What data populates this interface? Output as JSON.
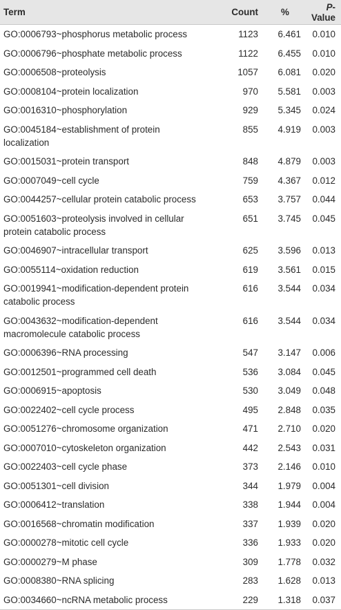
{
  "headers": {
    "term": "Term",
    "count": "Count",
    "pct": "%",
    "p_prefix": "P",
    "p_suffix": "-Value"
  },
  "rows": [
    {
      "term": "GO:0006793~phosphorus metabolic process",
      "count": "1123",
      "pct": "6.461",
      "p": "0.010"
    },
    {
      "term": "GO:0006796~phosphate metabolic process",
      "count": "1122",
      "pct": "6.455",
      "p": "0.010"
    },
    {
      "term": "GO:0006508~proteolysis",
      "count": "1057",
      "pct": "6.081",
      "p": "0.020"
    },
    {
      "term": "GO:0008104~protein localization",
      "count": "970",
      "pct": "5.581",
      "p": "0.003"
    },
    {
      "term": "GO:0016310~phosphorylation",
      "count": "929",
      "pct": "5.345",
      "p": "0.024"
    },
    {
      "term": "GO:0045184~establishment of protein localization",
      "count": "855",
      "pct": "4.919",
      "p": "0.003"
    },
    {
      "term": "GO:0015031~protein transport",
      "count": "848",
      "pct": "4.879",
      "p": "0.003"
    },
    {
      "term": "GO:0007049~cell cycle",
      "count": "759",
      "pct": "4.367",
      "p": "0.012"
    },
    {
      "term": "GO:0044257~cellular protein catabolic process",
      "count": "653",
      "pct": "3.757",
      "p": "0.044"
    },
    {
      "term": "GO:0051603~proteolysis involved in cellular protein catabolic process",
      "count": "651",
      "pct": "3.745",
      "p": "0.045"
    },
    {
      "term": "GO:0046907~intracellular transport",
      "count": "625",
      "pct": "3.596",
      "p": "0.013"
    },
    {
      "term": "GO:0055114~oxidation reduction",
      "count": "619",
      "pct": "3.561",
      "p": "0.015"
    },
    {
      "term": "GO:0019941~modification-dependent protein catabolic process",
      "count": "616",
      "pct": "3.544",
      "p": "0.034"
    },
    {
      "term": "GO:0043632~modification-dependent macromolecule catabolic process",
      "count": "616",
      "pct": "3.544",
      "p": "0.034"
    },
    {
      "term": "GO:0006396~RNA processing",
      "count": "547",
      "pct": "3.147",
      "p": "0.006"
    },
    {
      "term": "GO:0012501~programmed cell death",
      "count": "536",
      "pct": "3.084",
      "p": "0.045"
    },
    {
      "term": "GO:0006915~apoptosis",
      "count": "530",
      "pct": "3.049",
      "p": "0.048"
    },
    {
      "term": "GO:0022402~cell cycle process",
      "count": "495",
      "pct": "2.848",
      "p": "0.035"
    },
    {
      "term": "GO:0051276~chromosome organization",
      "count": "471",
      "pct": "2.710",
      "p": "0.020"
    },
    {
      "term": "GO:0007010~cytoskeleton organization",
      "count": "442",
      "pct": "2.543",
      "p": "0.031"
    },
    {
      "term": "GO:0022403~cell cycle phase",
      "count": "373",
      "pct": "2.146",
      "p": "0.010"
    },
    {
      "term": "GO:0051301~cell division",
      "count": "344",
      "pct": "1.979",
      "p": "0.004"
    },
    {
      "term": "GO:0006412~translation",
      "count": "338",
      "pct": "1.944",
      "p": "0.004"
    },
    {
      "term": "GO:0016568~chromatin modification",
      "count": "337",
      "pct": "1.939",
      "p": "0.020"
    },
    {
      "term": "GO:0000278~mitotic cell cycle",
      "count": "336",
      "pct": "1.933",
      "p": "0.020"
    },
    {
      "term": "GO:0000279~M phase",
      "count": "309",
      "pct": "1.778",
      "p": "0.032"
    },
    {
      "term": "GO:0008380~RNA splicing",
      "count": "283",
      "pct": "1.628",
      "p": "0.013"
    },
    {
      "term": "GO:0034660~ncRNA metabolic process",
      "count": "229",
      "pct": "1.318",
      "p": "0.037"
    }
  ]
}
